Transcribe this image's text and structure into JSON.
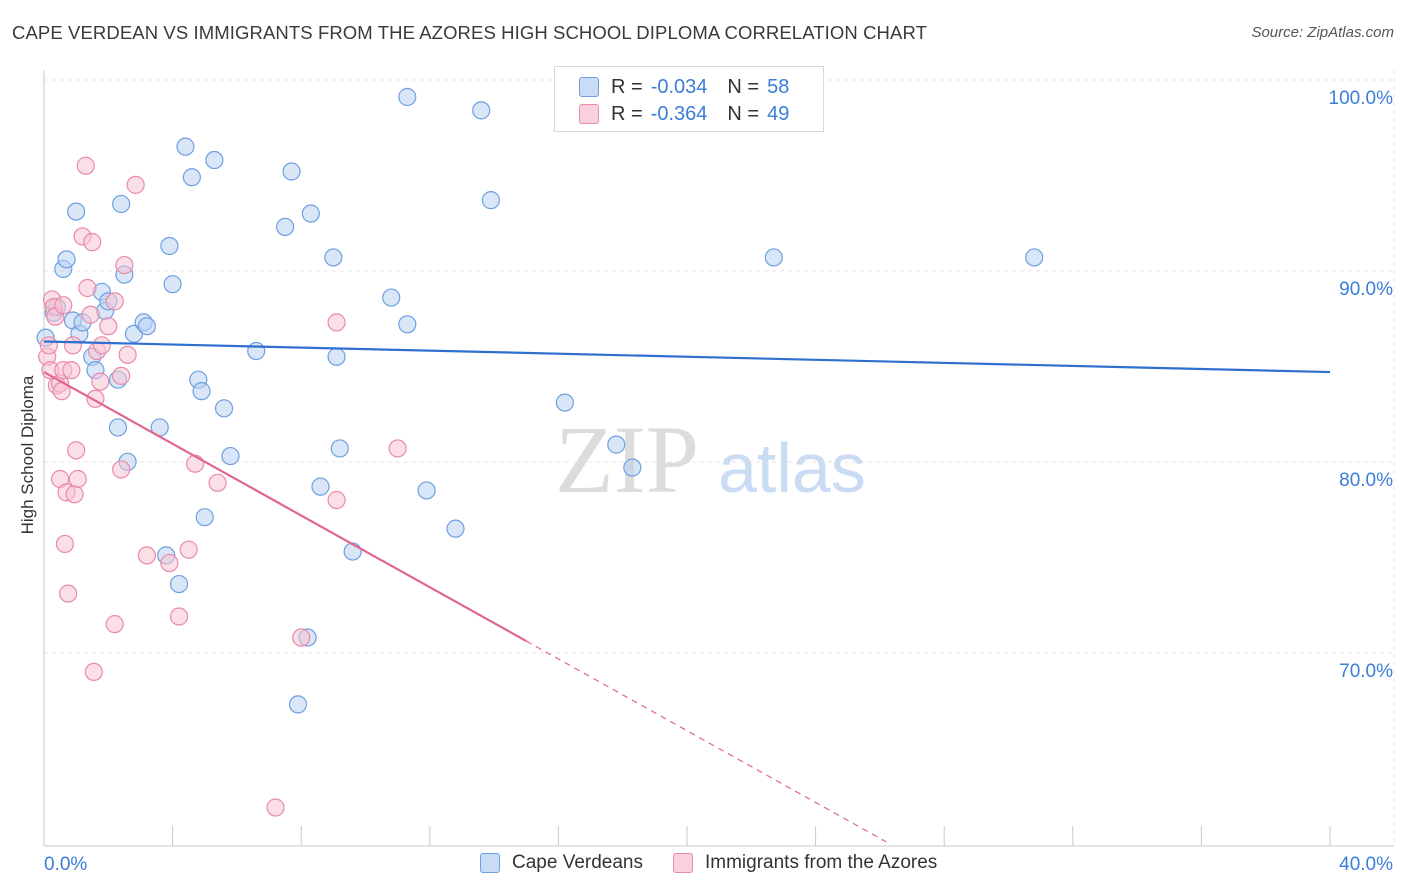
{
  "title": "CAPE VERDEAN VS IMMIGRANTS FROM THE AZORES HIGH SCHOOL DIPLOMA CORRELATION CHART",
  "source": "Source: ZipAtlas.com",
  "watermark": {
    "zip": "ZIP",
    "atlas": "atlas"
  },
  "legend": {
    "r_label": "R =",
    "n_label": "N =",
    "series1": {
      "r": "-0.034",
      "n": "58"
    },
    "series2": {
      "r": "-0.364",
      "n": "49"
    }
  },
  "colors": {
    "blue_fill": "#b8d1f3",
    "blue_stroke": "#6f9fdf",
    "blue_line": "#2f6fcf",
    "pink_fill": "#f7c5d4",
    "pink_stroke": "#e98aa9",
    "pink_line": "#e0668f",
    "axis_text": "#3b7dd8",
    "grid": "#e4e4e4"
  },
  "chart_data": {
    "type": "scatter",
    "title": "CAPE VERDEAN VS IMMIGRANTS FROM THE AZORES HIGH SCHOOL DIPLOMA CORRELATION CHART",
    "xlabel": "",
    "ylabel": "High School Diploma",
    "xlim": [
      0,
      40
    ],
    "ylim": [
      61,
      101.5
    ],
    "x_tick_labels": [
      "0.0%",
      "40.0%"
    ],
    "y_ticks": [
      70,
      80,
      90,
      100
    ],
    "y_tick_labels": [
      "70.0%",
      "80.0%",
      "90.0%",
      "100.0%"
    ],
    "grid": true,
    "legend_position": "top-center",
    "series": [
      {
        "name": "Cape Verdeans",
        "r": -0.034,
        "n": 58,
        "trend": {
          "x": [
            0,
            40
          ],
          "y": [
            87.2,
            85.6
          ],
          "solid_until": 40
        },
        "points": [
          [
            0.3,
            88.7
          ],
          [
            0.4,
            89.0
          ],
          [
            0.6,
            91.0
          ],
          [
            0.7,
            91.5
          ],
          [
            0.9,
            88.3
          ],
          [
            1.0,
            94.0
          ],
          [
            1.1,
            87.6
          ],
          [
            1.2,
            88.2
          ],
          [
            1.5,
            86.4
          ],
          [
            1.6,
            85.7
          ],
          [
            1.8,
            89.8
          ],
          [
            1.9,
            88.8
          ],
          [
            2.0,
            89.3
          ],
          [
            2.3,
            82.7
          ],
          [
            2.3,
            85.2
          ],
          [
            2.4,
            94.4
          ],
          [
            2.5,
            90.7
          ],
          [
            2.6,
            80.9
          ],
          [
            2.8,
            87.6
          ],
          [
            3.1,
            88.2
          ],
          [
            3.2,
            88.0
          ],
          [
            3.6,
            82.7
          ],
          [
            3.8,
            76.0
          ],
          [
            3.9,
            92.2
          ],
          [
            4.0,
            90.2
          ],
          [
            4.2,
            74.5
          ],
          [
            4.4,
            97.4
          ],
          [
            4.6,
            95.8
          ],
          [
            4.8,
            85.2
          ],
          [
            4.9,
            84.6
          ],
          [
            5.0,
            78.0
          ],
          [
            5.3,
            96.7
          ],
          [
            5.6,
            83.7
          ],
          [
            5.8,
            81.2
          ],
          [
            6.6,
            86.7
          ],
          [
            7.5,
            93.2
          ],
          [
            7.7,
            96.1
          ],
          [
            7.9,
            68.2
          ],
          [
            8.2,
            71.7
          ],
          [
            8.3,
            93.9
          ],
          [
            8.6,
            79.6
          ],
          [
            9.0,
            91.6
          ],
          [
            9.1,
            86.4
          ],
          [
            9.2,
            81.6
          ],
          [
            9.6,
            76.2
          ],
          [
            10.8,
            89.5
          ],
          [
            11.3,
            88.1
          ],
          [
            11.3,
            100.0
          ],
          [
            11.9,
            79.4
          ],
          [
            12.8,
            77.4
          ],
          [
            13.6,
            99.3
          ],
          [
            13.9,
            94.6
          ],
          [
            16.2,
            84.0
          ],
          [
            17.8,
            81.8
          ],
          [
            18.3,
            80.6
          ],
          [
            22.7,
            91.6
          ],
          [
            30.8,
            91.6
          ],
          [
            0.05,
            87.4
          ]
        ]
      },
      {
        "name": "Immigrants from the Azores",
        "r": -0.364,
        "n": 49,
        "trend": {
          "x": [
            0,
            26.2
          ],
          "y": [
            85.6,
            61.0
          ],
          "solid_until": 15.0
        },
        "points": [
          [
            0.1,
            86.4
          ],
          [
            0.15,
            87.0
          ],
          [
            0.2,
            85.7
          ],
          [
            0.25,
            89.4
          ],
          [
            0.3,
            89.0
          ],
          [
            0.35,
            88.5
          ],
          [
            0.4,
            84.9
          ],
          [
            0.5,
            85.0
          ],
          [
            0.5,
            80.0
          ],
          [
            0.55,
            84.6
          ],
          [
            0.6,
            85.7
          ],
          [
            0.6,
            89.1
          ],
          [
            0.65,
            76.6
          ],
          [
            0.7,
            79.3
          ],
          [
            0.75,
            74.0
          ],
          [
            0.85,
            85.7
          ],
          [
            0.9,
            87.0
          ],
          [
            0.95,
            79.2
          ],
          [
            1.0,
            81.5
          ],
          [
            1.05,
            80.0
          ],
          [
            1.2,
            92.7
          ],
          [
            1.3,
            96.4
          ],
          [
            1.35,
            90.0
          ],
          [
            1.45,
            88.6
          ],
          [
            1.5,
            92.4
          ],
          [
            1.55,
            69.9
          ],
          [
            1.6,
            84.2
          ],
          [
            1.65,
            86.7
          ],
          [
            1.75,
            85.1
          ],
          [
            1.8,
            87.0
          ],
          [
            2.0,
            88.0
          ],
          [
            2.2,
            89.3
          ],
          [
            2.2,
            72.4
          ],
          [
            2.4,
            85.4
          ],
          [
            2.4,
            80.5
          ],
          [
            2.5,
            91.2
          ],
          [
            2.6,
            86.5
          ],
          [
            2.85,
            95.4
          ],
          [
            3.2,
            76.0
          ],
          [
            3.9,
            75.6
          ],
          [
            4.2,
            72.8
          ],
          [
            4.5,
            76.3
          ],
          [
            4.7,
            80.8
          ],
          [
            5.4,
            79.8
          ],
          [
            7.2,
            62.8
          ],
          [
            8.0,
            71.7
          ],
          [
            9.1,
            78.9
          ],
          [
            9.1,
            88.2
          ],
          [
            11.0,
            81.6
          ]
        ]
      }
    ]
  }
}
